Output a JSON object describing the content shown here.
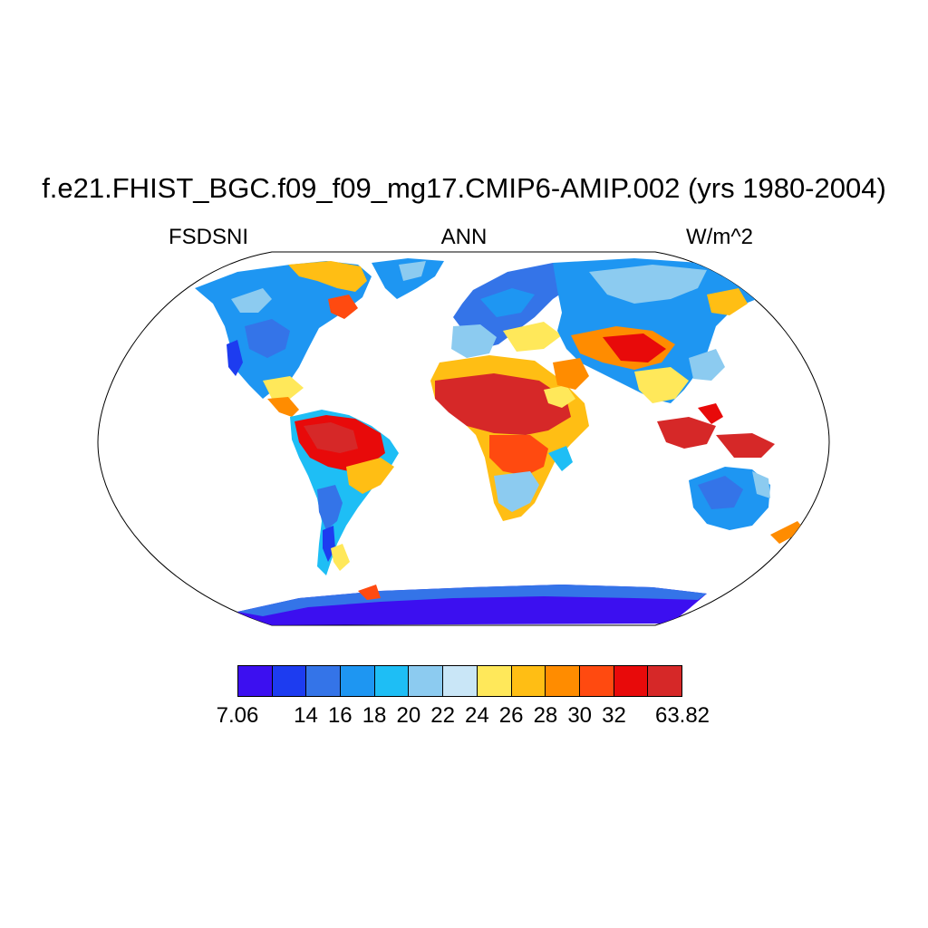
{
  "title": "f.e21.FHIST_BGC.f09_f09_mg17.CMIP6-AMIP.002 (yrs 1980-2004)",
  "variable": "FSDSNI",
  "season": "ANN",
  "units": "W/m^2",
  "colorbar": {
    "colors": [
      "#3c0ff0",
      "#1d3cf0",
      "#3474e8",
      "#1e96f2",
      "#1ebef5",
      "#8ccbf0",
      "#c9e6f7",
      "#ffe85a",
      "#ffbe14",
      "#ff8c00",
      "#ff4a10",
      "#e80a0a",
      "#d62828"
    ],
    "labels": [
      "7.06",
      "14",
      "16",
      "18",
      "20",
      "22",
      "24",
      "26",
      "28",
      "30",
      "32",
      "63.82"
    ],
    "label_boundaries": [
      0,
      2,
      3,
      4,
      5,
      6,
      7,
      8,
      9,
      10,
      11,
      13
    ]
  }
}
